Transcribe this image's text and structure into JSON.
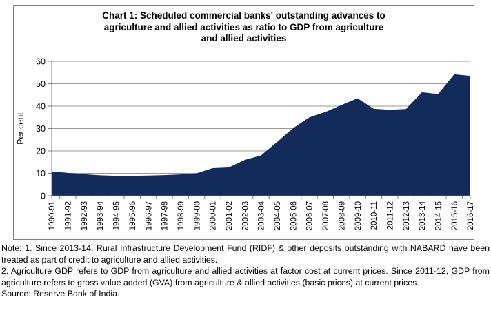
{
  "figure": {
    "title": "Chart 1: Scheduled commercial banks' outstanding advances to\nagriculture and allied activities as ratio to GDP from agriculture\nand allied activities"
  },
  "chart_data": {
    "type": "area",
    "title": "Chart 1: Scheduled commercial banks' outstanding advances to agriculture and allied activities as ratio to GDP from agriculture and allied activities",
    "xlabel": "",
    "ylabel": "Per cent",
    "ylim": [
      0,
      60
    ],
    "yticks": [
      0,
      10,
      20,
      30,
      40,
      50,
      60
    ],
    "grid": "horizontal",
    "legend": "none",
    "categories": [
      "1990-91",
      "1991-92",
      "1992-93",
      "1993-94",
      "1994-95",
      "1995-96",
      "1996-97",
      "1997-98",
      "1998-99",
      "1999-00",
      "2000-01",
      "2001-02",
      "2002-03",
      "2003-04",
      "2004-05",
      "2005-06",
      "2006-07",
      "2007-08",
      "2008-09",
      "2009-10",
      "2010-11",
      "2011-12",
      "2012-13",
      "2013-14",
      "2014-15",
      "2015-16",
      "2016-17"
    ],
    "values": [
      10.9,
      10.2,
      9.6,
      9.1,
      8.9,
      8.9,
      9.0,
      9.2,
      9.5,
      10.0,
      12.3,
      12.6,
      16.0,
      18.0,
      24.0,
      30.2,
      35.0,
      37.4,
      40.5,
      43.5,
      38.8,
      38.4,
      38.7,
      46.2,
      45.4,
      54.2,
      53.5
    ],
    "area_color": "#132b5b",
    "gridline_color": "#999999",
    "axis_color": "#7f7f7f",
    "baseline_color": "#595959"
  },
  "notes": {
    "note1": "Note: 1. Since 2013-14, Rural Infrastructure Development Fund (RIDF) & other deposits outstanding with NABARD have been treated as part of credit to agriculture and allied activities.",
    "note2": "2. Agriculture GDP refers to GDP from agriculture and allied activities at factor cost at current prices. Since 2011-12, GDP from agriculture refers to gross value added (GVA) from agriculture & allied activities (basic prices) at current prices.",
    "source": "Source: Reserve Bank of India."
  }
}
